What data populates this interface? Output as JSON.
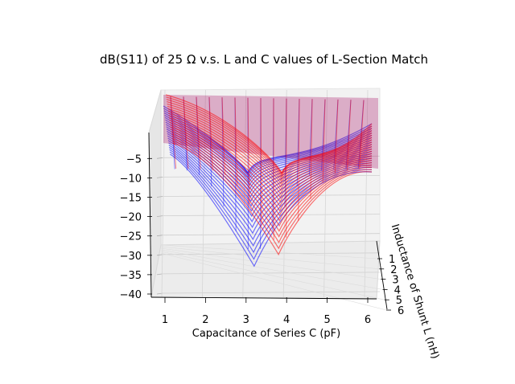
{
  "chart_data": {
    "type": "surface3d",
    "title": "dB(S11) of 25 Ω v.s. L and C values of L-Section Match",
    "xlabel": "Capacitance of Series C (pF)",
    "ylabel": "Inductance of Shunt L (nH)",
    "zlabel": "",
    "x_ticks": [
      "1",
      "2",
      "3",
      "4",
      "5",
      "6"
    ],
    "y_ticks": [
      "1",
      "2",
      "3",
      "4",
      "5",
      "6"
    ],
    "z_ticks": [
      "−5",
      "−10",
      "−15",
      "−20",
      "−25",
      "−30",
      "−35",
      "−40"
    ],
    "xlim": [
      1,
      6
    ],
    "ylim": [
      1,
      6
    ],
    "zlim": [
      -40,
      0
    ],
    "series": [
      {
        "color": "#0000ff",
        "minimum": {
          "x": 3.2,
          "z": -33
        }
      },
      {
        "color": "#ff0000",
        "minimum": {
          "x": 3.8,
          "z": -30
        }
      }
    ],
    "grid": true
  }
}
